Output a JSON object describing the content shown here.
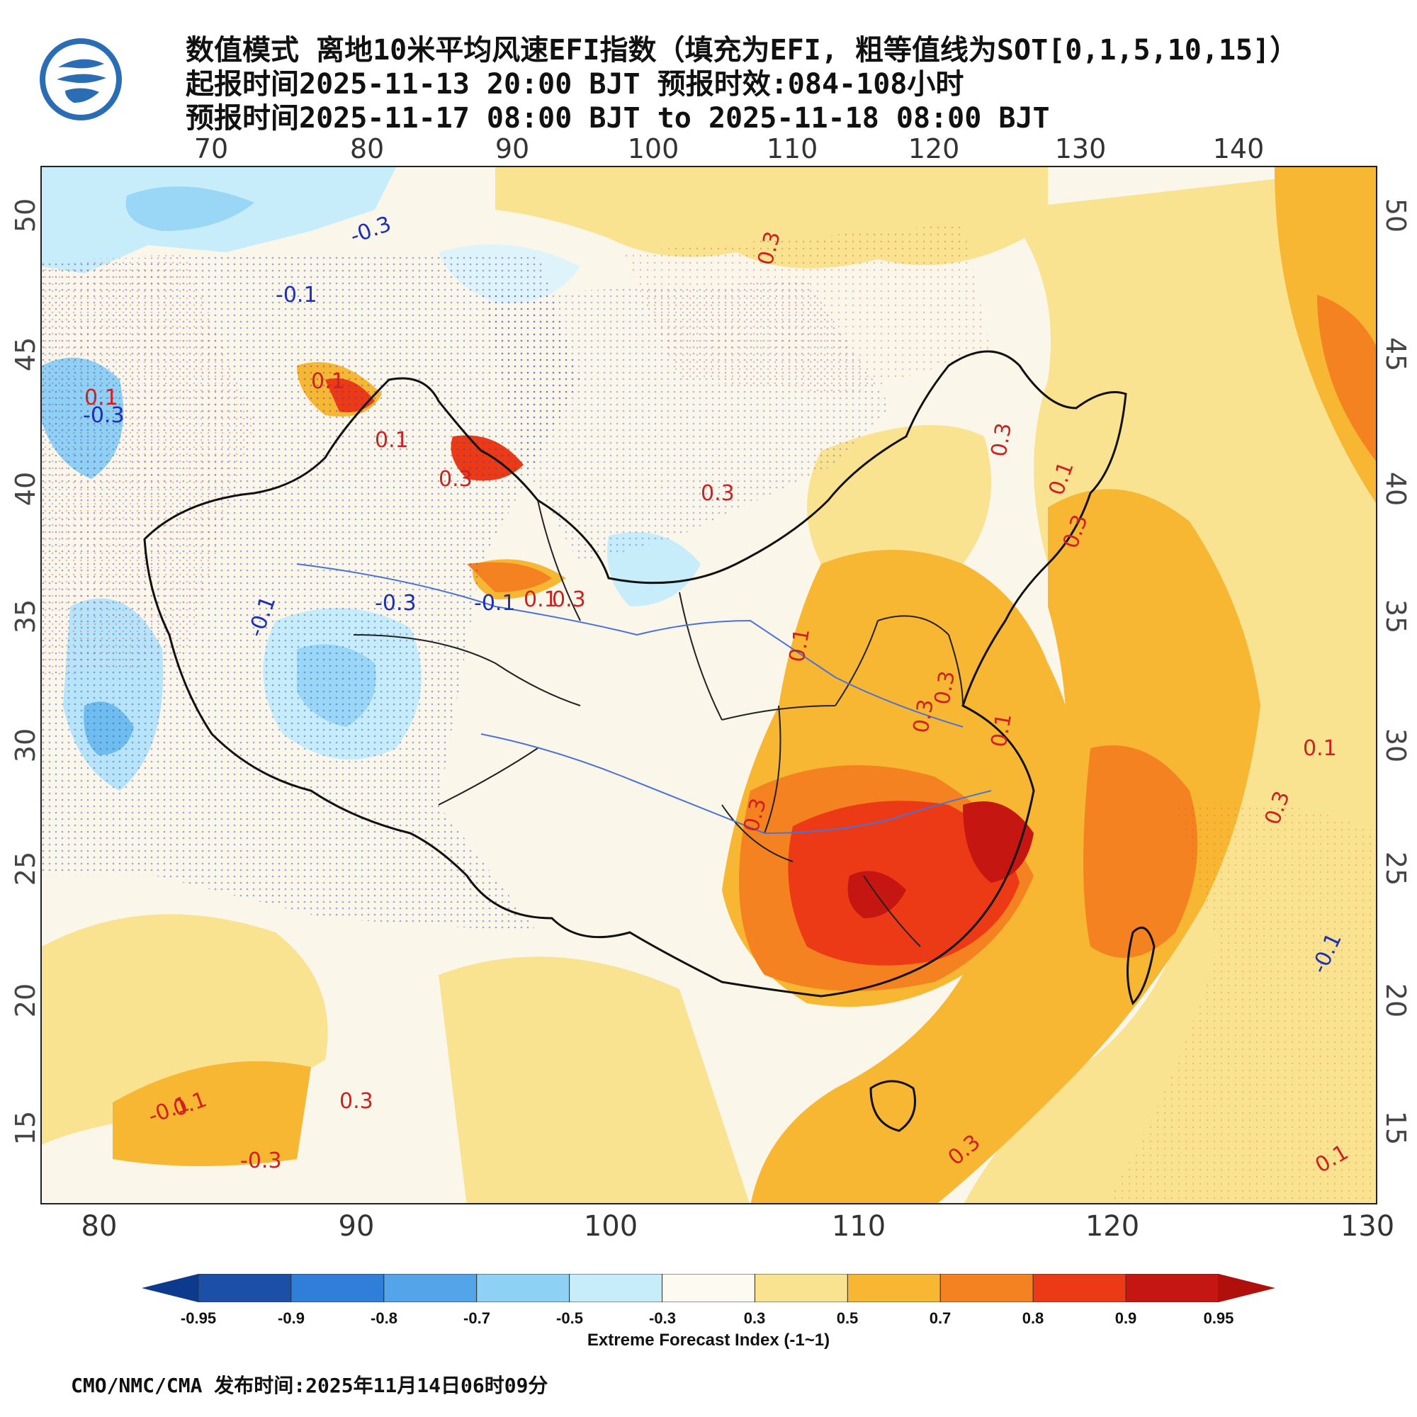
{
  "header": {
    "title_line1": "数值模式 离地10米平均风速EFI指数（填充为EFI, 粗等值线为SOT[0,1,5,10,15]）",
    "title_line2": "起报时间2025-11-13 20:00 BJT 预报时效:084-108小时",
    "title_line3": "预报时间2025-11-17 08:00 BJT to 2025-11-18 08:00 BJT"
  },
  "axes": {
    "top_lon": [
      "70",
      "80",
      "90",
      "100",
      "110",
      "120",
      "130",
      "140"
    ],
    "bottom_lon": [
      "80",
      "90",
      "100",
      "110",
      "120",
      "130"
    ],
    "left_lat": [
      "50",
      "45",
      "40",
      "35",
      "30",
      "25",
      "20",
      "15"
    ],
    "right_lat": [
      "50",
      "45",
      "40",
      "35",
      "30",
      "25",
      "20",
      "15"
    ]
  },
  "contour_labels": {
    "items": [
      "-0.3",
      "-0.1",
      "0.1",
      "-0.3",
      "0.1",
      "0.3",
      "0.1",
      "0.3",
      "0.3",
      "-0.3",
      "-0.1",
      "0.1",
      "0.3",
      "0.1",
      "0.3",
      "0.3",
      "0.3",
      "0.1",
      "0.3",
      "0.1",
      "0.3",
      "0.3",
      "0.1",
      "-0.1",
      "0.1",
      "0.3",
      "0.3",
      "-0.3",
      "-0.1",
      "-0.1",
      "0.1"
    ]
  },
  "legend": {
    "tick_labels": [
      "-0.95",
      "-0.9",
      "-0.8",
      "-0.7",
      "-0.5",
      "-0.3",
      "0.3",
      "0.5",
      "0.7",
      "0.8",
      "0.9",
      "0.95"
    ],
    "colors": [
      "#1b4fa8",
      "#2f7fd8",
      "#54a4ea",
      "#8fd0f5",
      "#c7ecfa",
      "#fdfaf1",
      "#fae390",
      "#f7b733",
      "#f58220",
      "#ec3a16",
      "#c51612"
    ],
    "arrow_low_color": "#0d3a8c",
    "arrow_high_color": "#b0100c",
    "label": "Extreme Forecast Index (-1~1)"
  },
  "footer": {
    "text": "CMO/NMC/CMA 发布时间:2025年11月14日06时09分"
  }
}
